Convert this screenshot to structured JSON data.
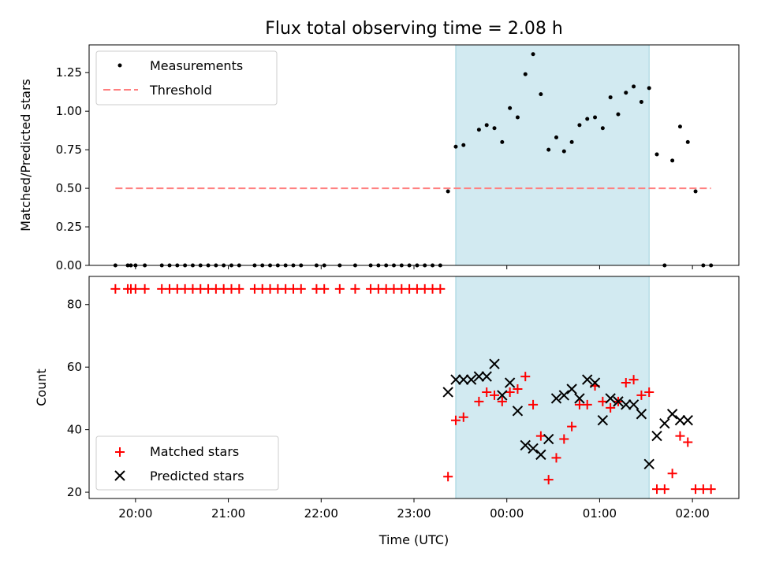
{
  "chart_data": {
    "type": "scatter",
    "title": "Flux total observing time = 2.08 h",
    "xlabel": "Time (UTC)",
    "x_tick_labels": [
      "20:00",
      "21:00",
      "22:00",
      "23:00",
      "00:00",
      "01:00",
      "02:00"
    ],
    "x_tick_values": [
      "20:00",
      "21:00",
      "22:00",
      "23:00",
      "00:00",
      "01:00",
      "02:00"
    ],
    "x_range": [
      "19:30",
      "02:30"
    ],
    "shaded_span": [
      "23:27",
      "01:32"
    ],
    "shade_color": "#add8e6",
    "panels": [
      {
        "ylabel": "Matched/Predicted stars",
        "ylim": [
          0,
          1.43
        ],
        "y_tick_labels": [
          "0.00",
          "0.25",
          "0.50",
          "0.75",
          "1.00",
          "1.25"
        ],
        "y_tick_values": [
          0,
          0.25,
          0.5,
          0.75,
          1.0,
          1.25
        ],
        "legend_position": "upper left",
        "series": [
          {
            "name": "Measurements",
            "marker": "dot",
            "color": "#000000",
            "x": [
              "19:47",
              "19:55",
              "19:57",
              "20:00",
              "20:06",
              "20:17",
              "20:22",
              "20:27",
              "20:32",
              "20:37",
              "20:42",
              "20:47",
              "20:52",
              "20:57",
              "21:02",
              "21:07",
              "21:17",
              "21:22",
              "21:27",
              "21:32",
              "21:37",
              "21:42",
              "21:47",
              "21:57",
              "22:02",
              "22:12",
              "22:22",
              "22:32",
              "22:37",
              "22:42",
              "22:47",
              "22:52",
              "22:57",
              "23:02",
              "23:07",
              "23:12",
              "23:17",
              "23:22",
              "23:27",
              "23:32",
              "23:42",
              "23:47",
              "23:52",
              "23:57",
              "00:02",
              "00:07",
              "00:12",
              "00:17",
              "00:22",
              "00:27",
              "00:32",
              "00:37",
              "00:42",
              "00:47",
              "00:52",
              "00:57",
              "01:02",
              "01:07",
              "01:12",
              "01:17",
              "01:22",
              "01:27",
              "01:32",
              "01:37",
              "01:42",
              "01:47",
              "01:52",
              "01:57",
              "02:02",
              "02:07",
              "02:12"
            ],
            "y": [
              0,
              0,
              0,
              0,
              0,
              0,
              0,
              0,
              0,
              0,
              0,
              0,
              0,
              0,
              0,
              0,
              0,
              0,
              0,
              0,
              0,
              0,
              0,
              0,
              0,
              0,
              0,
              0,
              0,
              0,
              0,
              0,
              0,
              0,
              0,
              0,
              0,
              0.48,
              0.77,
              0.78,
              0.88,
              0.91,
              0.89,
              0.8,
              1.02,
              0.96,
              1.24,
              1.37,
              1.11,
              0.75,
              0.83,
              0.74,
              0.8,
              0.91,
              0.95,
              0.96,
              0.89,
              1.09,
              0.98,
              1.12,
              1.16,
              1.06,
              1.15,
              0.72,
              0,
              0.68,
              0.9,
              0.8,
              0.48,
              0,
              0
            ]
          },
          {
            "name": "Threshold",
            "marker": "dashed-line",
            "color": "#ff7f7f",
            "x": [
              "19:47",
              "02:12"
            ],
            "y": [
              0.5,
              0.5
            ]
          }
        ]
      },
      {
        "ylabel": "Count",
        "ylim": [
          18,
          89
        ],
        "y_tick_labels": [
          "20",
          "40",
          "60",
          "80"
        ],
        "y_tick_values": [
          20,
          40,
          60,
          80
        ],
        "legend_position": "lower left",
        "series": [
          {
            "name": "Matched stars",
            "marker": "plus",
            "color": "#ff0000",
            "x": [
              "19:47",
              "19:55",
              "19:57",
              "20:00",
              "20:06",
              "20:17",
              "20:22",
              "20:27",
              "20:32",
              "20:37",
              "20:42",
              "20:47",
              "20:52",
              "20:57",
              "21:02",
              "21:07",
              "21:17",
              "21:22",
              "21:27",
              "21:32",
              "21:37",
              "21:42",
              "21:47",
              "21:57",
              "22:02",
              "22:12",
              "22:22",
              "22:32",
              "22:37",
              "22:42",
              "22:47",
              "22:52",
              "22:57",
              "23:02",
              "23:07",
              "23:12",
              "23:17",
              "23:22",
              "23:27",
              "23:32",
              "23:42",
              "23:47",
              "23:52",
              "23:57",
              "00:02",
              "00:07",
              "00:12",
              "00:17",
              "00:22",
              "00:27",
              "00:32",
              "00:37",
              "00:42",
              "00:47",
              "00:52",
              "00:57",
              "01:02",
              "01:07",
              "01:12",
              "01:17",
              "01:22",
              "01:27",
              "01:32",
              "01:37",
              "01:42",
              "01:47",
              "01:52",
              "01:57",
              "02:02",
              "02:07",
              "02:12"
            ],
            "y": [
              85,
              85,
              85,
              85,
              85,
              85,
              85,
              85,
              85,
              85,
              85,
              85,
              85,
              85,
              85,
              85,
              85,
              85,
              85,
              85,
              85,
              85,
              85,
              85,
              85,
              85,
              85,
              85,
              85,
              85,
              85,
              85,
              85,
              85,
              85,
              85,
              85,
              25,
              43,
              44,
              49,
              52,
              51,
              49,
              52,
              53,
              57,
              48,
              38,
              24,
              31,
              37,
              41,
              48,
              48,
              54,
              49,
              47,
              49,
              55,
              56,
              51,
              52,
              21,
              21,
              26,
              38,
              36,
              21,
              21,
              21
            ]
          },
          {
            "name": "Predicted stars",
            "marker": "x",
            "color": "#000000",
            "x": [
              "23:22",
              "23:27",
              "23:32",
              "23:37",
              "23:42",
              "23:47",
              "23:52",
              "23:57",
              "00:02",
              "00:07",
              "00:12",
              "00:17",
              "00:22",
              "00:27",
              "00:32",
              "00:37",
              "00:42",
              "00:47",
              "00:52",
              "00:57",
              "01:02",
              "01:07",
              "01:12",
              "01:17",
              "01:22",
              "01:27",
              "01:32",
              "01:37",
              "01:42",
              "01:47",
              "01:52",
              "01:57"
            ],
            "y": [
              52,
              56,
              56,
              56,
              57,
              57,
              61,
              51,
              55,
              46,
              35,
              34,
              32,
              37,
              50,
              51,
              53,
              50,
              56,
              55,
              43,
              50,
              49,
              48,
              48,
              45,
              29,
              38,
              42,
              45,
              43,
              43
            ]
          }
        ]
      }
    ]
  }
}
